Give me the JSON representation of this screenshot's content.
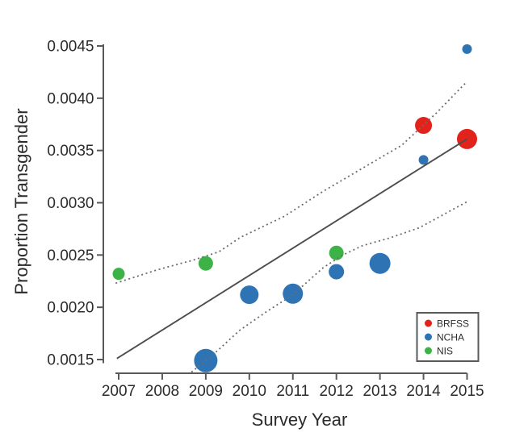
{
  "figure": {
    "background": "#ffffff"
  },
  "chart_data": {
    "type": "scatter",
    "title": "",
    "xlabel": "Survey Year",
    "ylabel": "Proportion Transgender",
    "x_ticks": [
      2007,
      2008,
      2009,
      2010,
      2011,
      2012,
      2013,
      2014,
      2015
    ],
    "y_ticks": [
      0.0015,
      0.002,
      0.0025,
      0.003,
      0.0035,
      0.004,
      0.0045
    ],
    "y_tick_labels": [
      "0.0015",
      "0.0020",
      "0.0025",
      "0.0030",
      "0.0035",
      "0.0040",
      "0.0045"
    ],
    "xlim": [
      2007,
      2015
    ],
    "ylim": [
      0.0015,
      0.0045
    ],
    "grid": false,
    "series": [
      {
        "name": "BRFSS",
        "color": "#e2231c",
        "points": [
          {
            "x": 2014,
            "y": 0.00374,
            "r": 10.5
          },
          {
            "x": 2015,
            "y": 0.00361,
            "r": 12.5
          }
        ]
      },
      {
        "name": "NCHA",
        "color": "#2e74b5",
        "points": [
          {
            "x": 2009,
            "y": 0.00149,
            "r": 14.5
          },
          {
            "x": 2010,
            "y": 0.00212,
            "r": 11.5
          },
          {
            "x": 2011,
            "y": 0.00213,
            "r": 12.5
          },
          {
            "x": 2012,
            "y": 0.00234,
            "r": 9.5
          },
          {
            "x": 2013,
            "y": 0.00242,
            "r": 13
          },
          {
            "x": 2014,
            "y": 0.00341,
            "r": 6
          },
          {
            "x": 2015,
            "y": 0.00447,
            "r": 6
          }
        ]
      },
      {
        "name": "NIS",
        "color": "#3db246",
        "points": [
          {
            "x": 2007,
            "y": 0.00232,
            "r": 7.5
          },
          {
            "x": 2009,
            "y": 0.00242,
            "r": 9
          },
          {
            "x": 2012,
            "y": 0.00252,
            "r": 9
          }
        ]
      }
    ],
    "fit_line": {
      "style": "solid",
      "points": [
        [
          2006.96,
          0.00151
        ],
        [
          2015,
          0.00361
        ]
      ]
    },
    "ci_upper": {
      "style": "dashed",
      "points": [
        [
          2006.93,
          0.00223
        ],
        [
          2007.9,
          0.00236
        ],
        [
          2008.7,
          0.00245
        ],
        [
          2009.3,
          0.00253
        ],
        [
          2009.8,
          0.00267
        ],
        [
          2010.8,
          0.00287
        ],
        [
          2011.7,
          0.00311
        ],
        [
          2012.6,
          0.00333
        ],
        [
          2013.5,
          0.00355
        ],
        [
          2014.3,
          0.00386
        ],
        [
          2015,
          0.00416
        ]
      ]
    },
    "ci_lower": {
      "style": "dashed",
      "points": [
        [
          2008.67,
          0.00138
        ],
        [
          2009.23,
          0.00157
        ],
        [
          2009.78,
          0.00178
        ],
        [
          2010.4,
          0.00196
        ],
        [
          2011.0,
          0.00212
        ],
        [
          2011.7,
          0.00238
        ],
        [
          2012.15,
          0.0025
        ],
        [
          2012.6,
          0.00259
        ],
        [
          2013.2,
          0.00266
        ],
        [
          2013.9,
          0.00276
        ],
        [
          2015,
          0.00301
        ]
      ]
    },
    "legend": {
      "position": "lower-right",
      "entries": [
        "BRFSS",
        "NCHA",
        "NIS"
      ]
    },
    "colors": {
      "axis": "#58595b",
      "fit_line": "#4d4d4f",
      "ci_line": "#6b6c6e",
      "text": "#2b2b2b",
      "legend_border": "#58595b",
      "legend_background": "#ffffff"
    }
  }
}
